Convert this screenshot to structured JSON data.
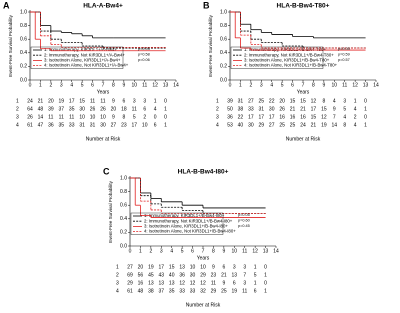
{
  "chart_data": [
    {
      "type": "line",
      "panel": "A",
      "title": "HLA-A-Bw4+",
      "y_label": "Event-Free Survival Probability",
      "x_label": "Years",
      "xlim": [
        0,
        14
      ],
      "ylim": [
        0,
        1
      ],
      "xticks": [
        0,
        1,
        2,
        3,
        4,
        5,
        6,
        7,
        8,
        9,
        10,
        11,
        12,
        13,
        14
      ],
      "yticks": [
        {
          "value": 0,
          "label": "0.0"
        },
        0.2,
        0.4,
        0.6,
        0.8,
        {
          "value": 1,
          "label": "1.0"
        }
      ],
      "series": [
        {
          "name": "1: Immunotherapy, KIR3DL1+/A-Bw4+",
          "color": "#000000",
          "dashed": false,
          "x": [
            0,
            1,
            2,
            3,
            4,
            5,
            6,
            8,
            13
          ],
          "values": [
            1,
            0.8,
            0.72,
            0.7,
            0.68,
            0.65,
            0.62,
            0.62,
            0.62
          ]
        },
        {
          "name": "2: Immunotherapy, Not KIR3DL1+/A-Bw4+",
          "color": "#000000",
          "dashed": true,
          "x": [
            0,
            1,
            2,
            3,
            5,
            7,
            13
          ],
          "values": [
            1,
            0.72,
            0.6,
            0.55,
            0.5,
            0.47,
            0.47
          ]
        },
        {
          "name": "3: Isotretinoin Alone, KIR3DL1+/A-Bw4+",
          "color": "#e02020",
          "dashed": false,
          "x": [
            0,
            0.5,
            1,
            2,
            13
          ],
          "values": [
            1,
            0.6,
            0.46,
            0.43,
            0.43
          ]
        },
        {
          "name": "4: Isotretinoin Alone, Not KIR3DL1+/A-Bw4+",
          "color": "#e02020",
          "dashed": true,
          "x": [
            0,
            1,
            2,
            3,
            13
          ],
          "values": [
            1,
            0.65,
            0.52,
            0.48,
            0.48
          ]
        }
      ],
      "annotations": [
        "p=0.03",
        "p=0.58",
        "p=0.06"
      ],
      "risk_table": {
        "label": "Number at Risk",
        "rows": [
          {
            "label": "1",
            "values": [
              "24",
              "21",
              "20",
              "19",
              "17",
              "15",
              "11",
              "11",
              "9",
              "6",
              "3",
              "3",
              "1",
              "0"
            ]
          },
          {
            "label": "2",
            "values": [
              "64",
              "48",
              "39",
              "37",
              "35",
              "30",
              "26",
              "26",
              "20",
              "18",
              "11",
              "6",
              "4",
              "1"
            ]
          },
          {
            "label": "3",
            "values": [
              "26",
              "14",
              "11",
              "11",
              "11",
              "10",
              "10",
              "10",
              "9",
              "8",
              "5",
              "2",
              "0",
              "0"
            ]
          },
          {
            "label": "4",
            "values": [
              "61",
              "47",
              "36",
              "35",
              "33",
              "31",
              "31",
              "30",
              "27",
              "23",
              "17",
              "10",
              "6",
              "1"
            ]
          }
        ]
      }
    },
    {
      "type": "line",
      "panel": "B",
      "title": "HLA-B-Bw4-T80+",
      "y_label": "Event-Free Survival Probability",
      "x_label": "Years",
      "xlim": [
        0,
        14
      ],
      "ylim": [
        0,
        1
      ],
      "xticks": [
        0,
        1,
        2,
        3,
        4,
        5,
        6,
        7,
        8,
        9,
        10,
        11,
        12,
        13,
        14
      ],
      "yticks": [
        {
          "value": 0,
          "label": "0.0"
        },
        0.2,
        0.4,
        0.6,
        0.8,
        {
          "value": 1,
          "label": "1.0"
        }
      ],
      "series": [
        {
          "name": "1: Immunotherapy, KIR3DL1+/B-Bw4-T80+",
          "color": "#000000",
          "dashed": false,
          "x": [
            0,
            1,
            2,
            3,
            4,
            6,
            8,
            13
          ],
          "values": [
            1,
            0.82,
            0.74,
            0.7,
            0.67,
            0.64,
            0.62,
            0.62
          ]
        },
        {
          "name": "2: Immunotherapy, Not KIR3DL1+/B-Bw4-T80+",
          "color": "#000000",
          "dashed": true,
          "x": [
            0,
            1,
            2,
            3,
            5,
            7,
            13
          ],
          "values": [
            1,
            0.72,
            0.6,
            0.55,
            0.5,
            0.47,
            0.47
          ]
        },
        {
          "name": "3: Isotretinoin Alone, KIR3DL1+/B-Bw4-T80+",
          "color": "#e02020",
          "dashed": false,
          "x": [
            0,
            0.5,
            1,
            2,
            13
          ],
          "values": [
            1,
            0.62,
            0.47,
            0.44,
            0.44
          ]
        },
        {
          "name": "4: Isotretinoin Alone, Not KIR3DL1+/B-Bw4-T80+",
          "color": "#e02020",
          "dashed": true,
          "x": [
            0,
            1,
            2,
            3,
            13
          ],
          "values": [
            1,
            0.66,
            0.52,
            0.47,
            0.47
          ]
        }
      ],
      "annotations": [
        "p=0.05",
        "p=0.59",
        "p=0.57"
      ],
      "risk_table": {
        "label": "Number at Risk",
        "rows": [
          {
            "label": "1",
            "values": [
              "39",
              "31",
              "27",
              "25",
              "22",
              "20",
              "15",
              "15",
              "12",
              "8",
              "4",
              "3",
              "1",
              "0"
            ]
          },
          {
            "label": "2",
            "values": [
              "50",
              "38",
              "33",
              "31",
              "30",
              "26",
              "21",
              "21",
              "17",
              "15",
              "9",
              "5",
              "4",
              "1"
            ]
          },
          {
            "label": "3",
            "values": [
              "36",
              "22",
              "17",
              "17",
              "17",
              "16",
              "16",
              "16",
              "15",
              "12",
              "7",
              "4",
              "2",
              "0"
            ]
          },
          {
            "label": "4",
            "values": [
              "53",
              "40",
              "30",
              "29",
              "27",
              "25",
              "25",
              "24",
              "21",
              "19",
              "14",
              "8",
              "4",
              "1"
            ]
          }
        ]
      }
    },
    {
      "type": "line",
      "panel": "C",
      "title": "HLA-B-Bw4-I80+",
      "y_label": "Event-Free Survival Probability",
      "x_label": "Years",
      "xlim": [
        0,
        14
      ],
      "ylim": [
        0,
        1
      ],
      "xticks": [
        0,
        1,
        2,
        3,
        4,
        5,
        6,
        7,
        8,
        9,
        10,
        11,
        12,
        13,
        14
      ],
      "yticks": [
        {
          "value": 0,
          "label": "0.0"
        },
        0.2,
        0.4,
        0.6,
        0.8,
        {
          "value": 1,
          "label": "1.0"
        }
      ],
      "series": [
        {
          "name": "1: Immunotherapy, KIR3DL1+/B-Bw4-I80+",
          "color": "#000000",
          "dashed": false,
          "x": [
            0,
            1,
            2,
            3,
            5,
            7,
            13
          ],
          "values": [
            1,
            0.78,
            0.7,
            0.65,
            0.6,
            0.56,
            0.56
          ]
        },
        {
          "name": "2: Immunotherapy, Not KIR3DL1+/B-Bw4-I80+",
          "color": "#000000",
          "dashed": true,
          "x": [
            0,
            1,
            2,
            3,
            5,
            7,
            13
          ],
          "values": [
            1,
            0.74,
            0.62,
            0.57,
            0.52,
            0.48,
            0.48
          ]
        },
        {
          "name": "3: Isotretinoin Alone, KIR3DL1+/B-Bw4-I80+",
          "color": "#e02020",
          "dashed": false,
          "x": [
            0,
            0.5,
            1,
            2,
            13
          ],
          "values": [
            1,
            0.6,
            0.45,
            0.42,
            0.42
          ]
        },
        {
          "name": "4: Isotretinoin Alone, Not KIR3DL1+/B-Bw4-I80+",
          "color": "#e02020",
          "dashed": true,
          "x": [
            0,
            1,
            2,
            3,
            13
          ],
          "values": [
            1,
            0.66,
            0.53,
            0.48,
            0.48
          ]
        }
      ],
      "annotations": [
        "p=0.05",
        "p=0.60",
        "p=0.45"
      ],
      "risk_table": {
        "label": "Number at Risk",
        "rows": [
          {
            "label": "1",
            "values": [
              "27",
              "20",
              "19",
              "17",
              "15",
              "13",
              "10",
              "10",
              "9",
              "6",
              "3",
              "3",
              "1",
              "0"
            ]
          },
          {
            "label": "2",
            "values": [
              "69",
              "56",
              "45",
              "43",
              "40",
              "36",
              "30",
              "29",
              "23",
              "21",
              "13",
              "7",
              "5",
              "1"
            ]
          },
          {
            "label": "3",
            "values": [
              "29",
              "16",
              "13",
              "13",
              "13",
              "12",
              "12",
              "12",
              "11",
              "9",
              "6",
              "3",
              "1",
              "0"
            ]
          },
          {
            "label": "4",
            "values": [
              "61",
              "48",
              "38",
              "37",
              "35",
              "33",
              "33",
              "32",
              "29",
              "25",
              "19",
              "11",
              "6",
              "1"
            ]
          }
        ]
      }
    }
  ]
}
